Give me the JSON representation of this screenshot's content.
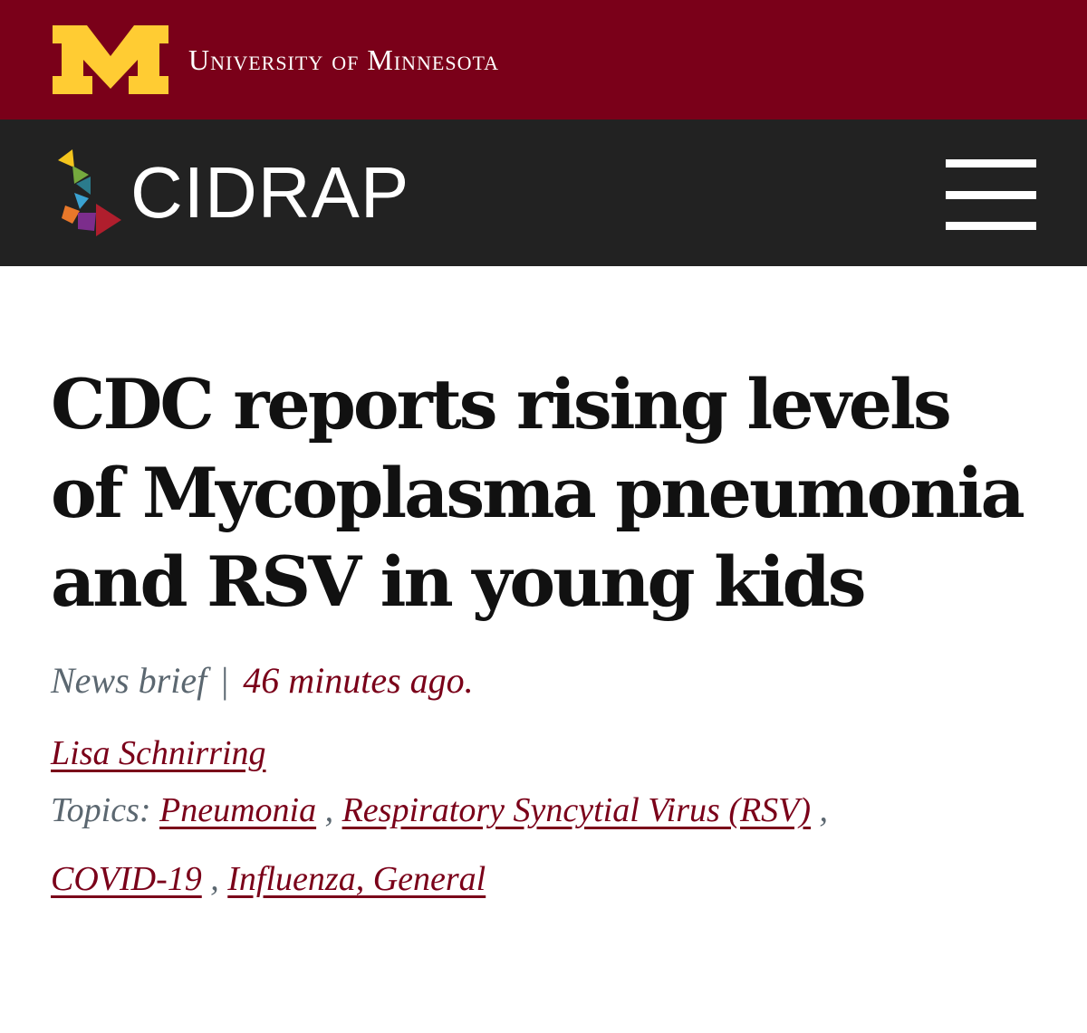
{
  "university_bar": {
    "name": "University of Minnesota",
    "logo_icon": "umn-block-m-logo",
    "background_color": "#7a0019",
    "logo_color": "#ffcc33"
  },
  "site_header": {
    "brand": "CIDRAP",
    "logo_icon": "cidrap-tangram-logo",
    "menu_icon": "hamburger-menu-icon",
    "background_color": "#222222"
  },
  "article": {
    "headline": "CDC reports rising levels of Mycoplasma pneumonia and RSV in young kids",
    "type": "News brief",
    "separator": "|",
    "time": "46 minutes ago.",
    "author": "Lisa Schnirring",
    "topics_label": "Topics:",
    "topics": [
      "Pneumonia",
      "Respiratory Syncytial Virus (RSV)",
      "COVID-19",
      "Influenza, General"
    ],
    "accent_color": "#7a0019"
  }
}
